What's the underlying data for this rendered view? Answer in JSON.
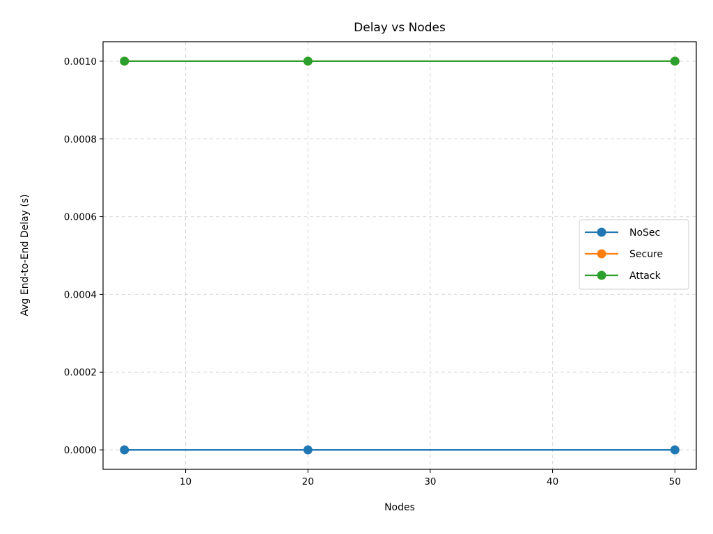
{
  "chart_data": {
    "type": "line",
    "title": "Delay vs Nodes",
    "xlabel": "Nodes",
    "ylabel": "Avg End-to-End Delay (s)",
    "x": [
      5,
      20,
      50
    ],
    "xlim": [
      3.25,
      51.75
    ],
    "ylim": [
      -5e-05,
      0.00105
    ],
    "xticks": [
      10,
      20,
      30,
      40,
      50
    ],
    "yticks": [
      0,
      0.0002,
      0.0004,
      0.0006,
      0.0008,
      0.001
    ],
    "xtick_labels": [
      "10",
      "20",
      "30",
      "40",
      "50"
    ],
    "ytick_labels": [
      "0.0000",
      "0.0002",
      "0.0004",
      "0.0006",
      "0.0008",
      "0.0010"
    ],
    "grid": true,
    "legend_position": "center-right",
    "series": [
      {
        "name": "NoSec",
        "color": "#1f77b4",
        "values": [
          0,
          0,
          0
        ]
      },
      {
        "name": "Secure",
        "color": "#ff7f0e",
        "values": [
          0.001,
          0.001,
          0.001
        ]
      },
      {
        "name": "Attack",
        "color": "#2ca02c",
        "values": [
          0.001,
          0.001,
          0.001
        ]
      }
    ]
  }
}
